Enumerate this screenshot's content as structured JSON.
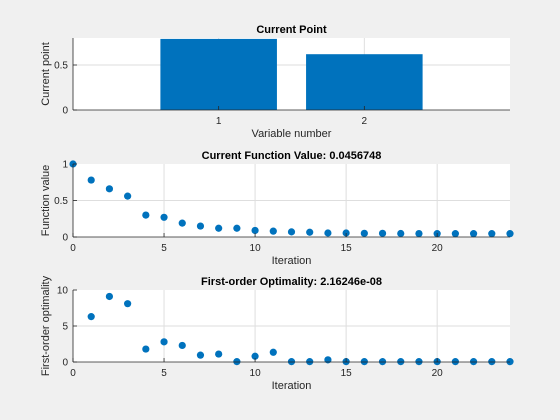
{
  "colors": {
    "figure_bg": "#f0f0f0",
    "axes_bg": "#ffffff",
    "series": "#0072bd",
    "grid": "#dedede",
    "axis": "#262626"
  },
  "chart_data": [
    {
      "type": "bar",
      "title": "Current Point",
      "xlabel": "Variable number",
      "ylabel": "Current point",
      "categories": [
        "1",
        "2"
      ],
      "values": [
        0.79,
        0.62
      ],
      "xlim": [
        0,
        3
      ],
      "ylim": [
        0,
        0.8
      ],
      "xticks": [
        1,
        2
      ],
      "xtick_labels": [
        "1",
        "2"
      ],
      "yticks": [
        0,
        0.5
      ],
      "ytick_labels": [
        "0",
        "0.5"
      ],
      "grid": true,
      "legend": "none"
    },
    {
      "type": "scatter",
      "title": "Current Function Value: 0.0456748",
      "xlabel": "Iteration",
      "ylabel": "Function value",
      "x": [
        0,
        1,
        2,
        3,
        4,
        5,
        6,
        7,
        8,
        9,
        10,
        11,
        12,
        13,
        14,
        15,
        16,
        17,
        18,
        19,
        20,
        21,
        22,
        23,
        24
      ],
      "y": [
        1.0,
        0.78,
        0.66,
        0.56,
        0.3,
        0.27,
        0.19,
        0.15,
        0.12,
        0.12,
        0.09,
        0.08,
        0.07,
        0.065,
        0.055,
        0.055,
        0.05,
        0.05,
        0.048,
        0.047,
        0.046,
        0.046,
        0.046,
        0.046,
        0.046
      ],
      "xlim": [
        0,
        24
      ],
      "ylim": [
        0,
        1
      ],
      "xticks": [
        0,
        5,
        10,
        15,
        20
      ],
      "xtick_labels": [
        "0",
        "5",
        "10",
        "15",
        "20"
      ],
      "yticks": [
        0,
        0.5,
        1
      ],
      "ytick_labels": [
        "0",
        "0.5",
        "1"
      ],
      "grid": true,
      "legend": "none"
    },
    {
      "type": "scatter",
      "title": "First-order Optimality: 2.16246e-08",
      "xlabel": "Iteration",
      "ylabel": "First-order optimality",
      "x": [
        1,
        2,
        3,
        4,
        5,
        6,
        7,
        8,
        9,
        10,
        11,
        12,
        13,
        14,
        15,
        16,
        17,
        18,
        19,
        20,
        21,
        22,
        23,
        24
      ],
      "y": [
        6.3,
        9.1,
        8.1,
        1.8,
        2.8,
        2.3,
        0.95,
        1.1,
        0.05,
        0.8,
        1.35,
        0.05,
        0.05,
        0.3,
        0.05,
        0.05,
        0.05,
        0.05,
        0.05,
        0.05,
        0.05,
        0.05,
        0.05,
        0.05
      ],
      "xlim": [
        0,
        24
      ],
      "ylim": [
        0,
        10
      ],
      "xticks": [
        0,
        5,
        10,
        15,
        20
      ],
      "xtick_labels": [
        "0",
        "5",
        "10",
        "15",
        "20"
      ],
      "yticks": [
        0,
        5,
        10
      ],
      "ytick_labels": [
        "0",
        "5",
        "10"
      ],
      "grid": true,
      "legend": "none"
    }
  ]
}
